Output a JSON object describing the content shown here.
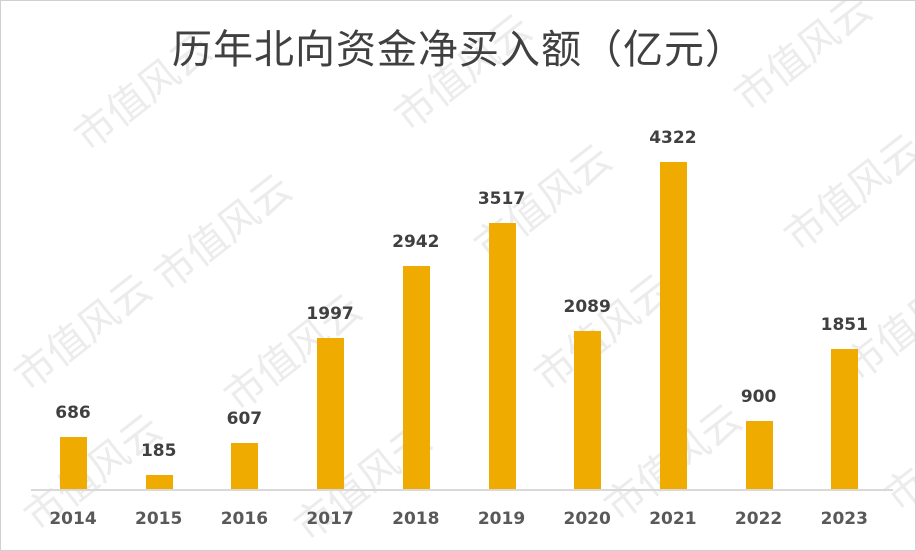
{
  "chart_data": {
    "type": "bar",
    "title": "历年北向资金净买入额（亿元）",
    "categories": [
      "2014",
      "2015",
      "2016",
      "2017",
      "2018",
      "2019",
      "2020",
      "2021",
      "2022",
      "2023"
    ],
    "values": [
      686,
      185,
      607,
      1997,
      2942,
      3517,
      2089,
      4322,
      900,
      1851
    ],
    "xlabel": "",
    "ylabel": "",
    "ylim": [
      0,
      4322
    ],
    "grid": false,
    "legend": null,
    "data_labels": true,
    "bar_color": "#f0ab00"
  },
  "watermark": "市值风云"
}
